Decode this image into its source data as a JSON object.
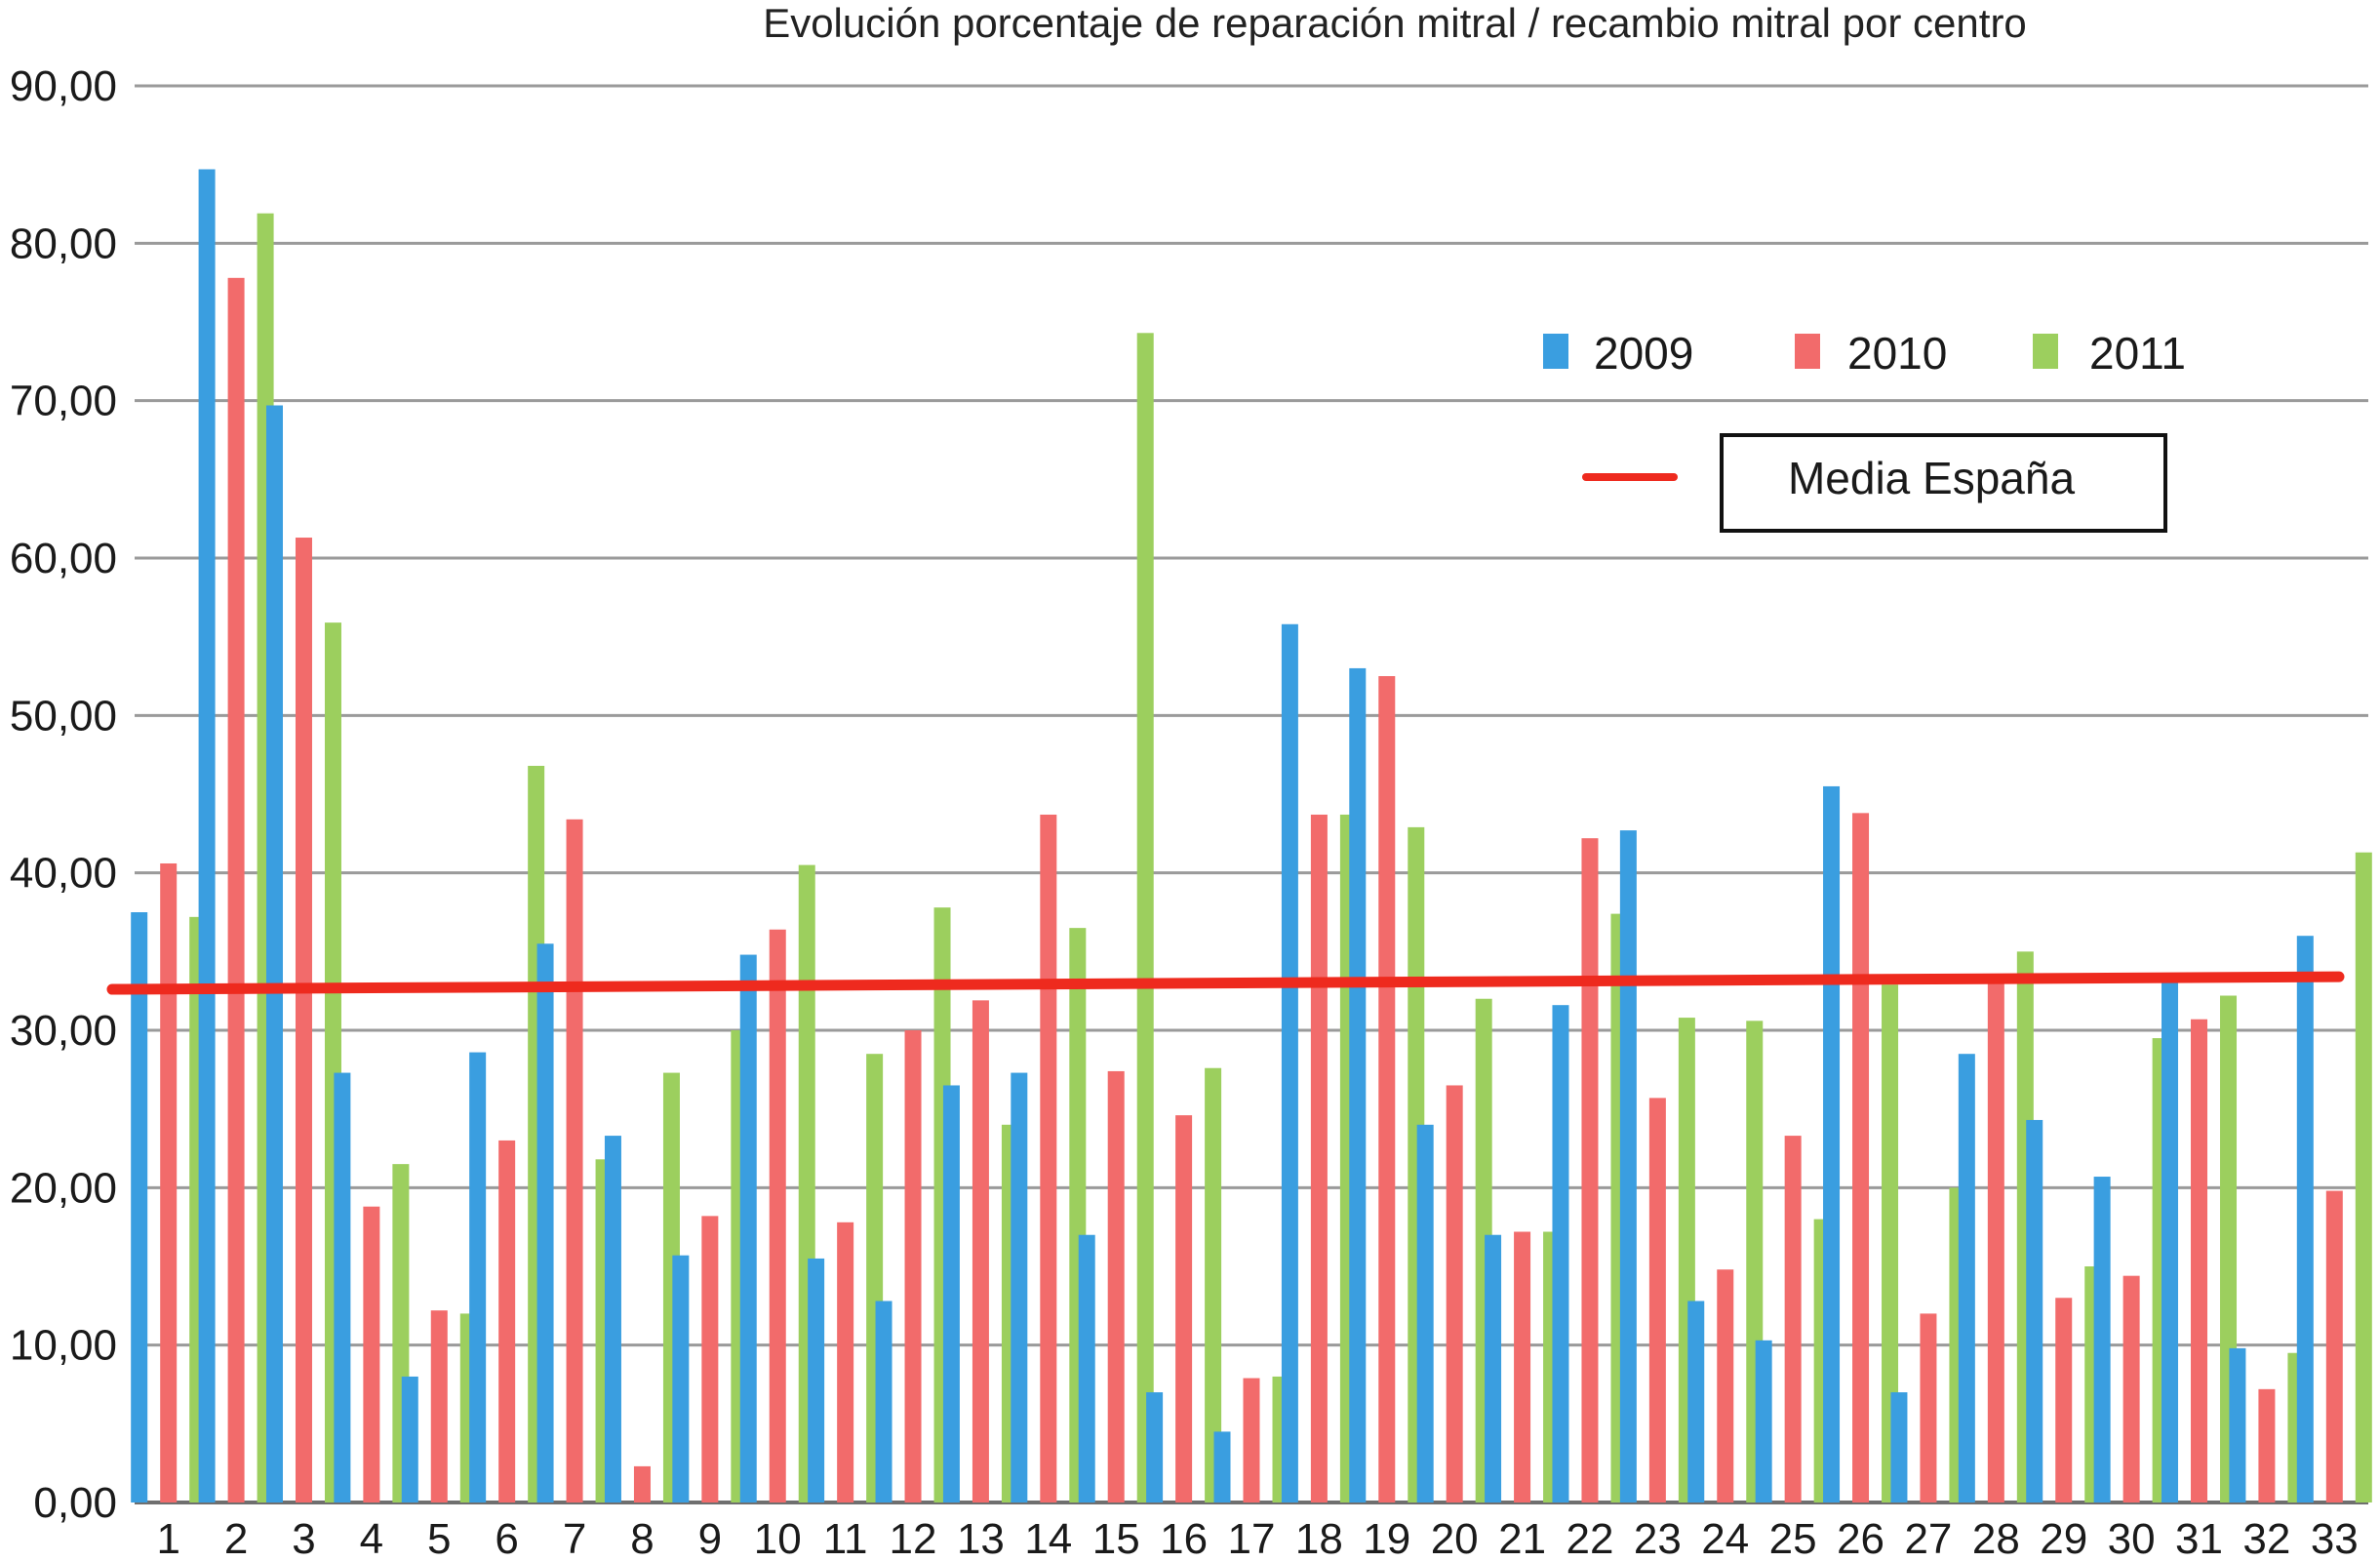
{
  "chart_data": {
    "type": "bar",
    "title": "Evolución porcentaje de reparación mitral / recambio mitral por centro",
    "xlabel": "",
    "ylabel": "",
    "ylim": [
      0,
      90
    ],
    "yticks": [
      "0,00",
      "10,00",
      "20,00",
      "30,00",
      "40,00",
      "50,00",
      "60,00",
      "70,00",
      "80,00",
      "90,00"
    ],
    "grid": true,
    "legend_position": "top-right",
    "categories": [
      "1",
      "2",
      "3",
      "4",
      "5",
      "6",
      "7",
      "8",
      "9",
      "10",
      "11",
      "12",
      "13",
      "14",
      "15",
      "16",
      "17",
      "18",
      "19",
      "20",
      "21",
      "22",
      "23",
      "24",
      "25",
      "26",
      "27",
      "28",
      "29",
      "30",
      "31",
      "32",
      "33"
    ],
    "series": [
      {
        "name": "2009",
        "color": "#3a9ee0",
        "values": [
          37.5,
          84.7,
          69.7,
          27.3,
          8.0,
          28.6,
          35.5,
          23.3,
          15.7,
          34.8,
          15.5,
          12.8,
          26.5,
          27.3,
          17.0,
          7.0,
          4.5,
          55.8,
          53.0,
          24.0,
          17.0,
          31.6,
          42.7,
          12.8,
          10.3,
          45.5,
          7.0,
          28.5,
          24.3,
          20.7,
          33.4,
          9.8,
          36.0
        ]
      },
      {
        "name": "2010",
        "color": "#f26b6b",
        "values": [
          40.6,
          77.8,
          61.3,
          18.8,
          12.2,
          23.0,
          43.4,
          2.3,
          18.2,
          36.4,
          17.8,
          30.0,
          31.9,
          43.7,
          27.4,
          24.6,
          7.9,
          43.7,
          52.5,
          26.5,
          17.2,
          42.2,
          25.7,
          14.8,
          23.3,
          43.8,
          12.0,
          33.0,
          13.0,
          14.4,
          30.7,
          7.2,
          19.8
        ]
      },
      {
        "name": "2011",
        "color": "#9ccf5e",
        "values": [
          37.2,
          81.9,
          55.9,
          21.5,
          12.0,
          46.8,
          21.8,
          27.3,
          30.0,
          40.5,
          28.5,
          37.8,
          24.0,
          36.5,
          74.3,
          27.6,
          8.0,
          43.7,
          42.9,
          32.0,
          17.2,
          37.4,
          30.8,
          30.6,
          18.0,
          32.9,
          20.0,
          35.0,
          15.0,
          29.5,
          32.2,
          9.5,
          41.3
        ]
      }
    ],
    "reference_line": {
      "name": "Media España",
      "color": "#ee2a1e",
      "start_value": 32.6,
      "end_value": 33.4
    }
  }
}
